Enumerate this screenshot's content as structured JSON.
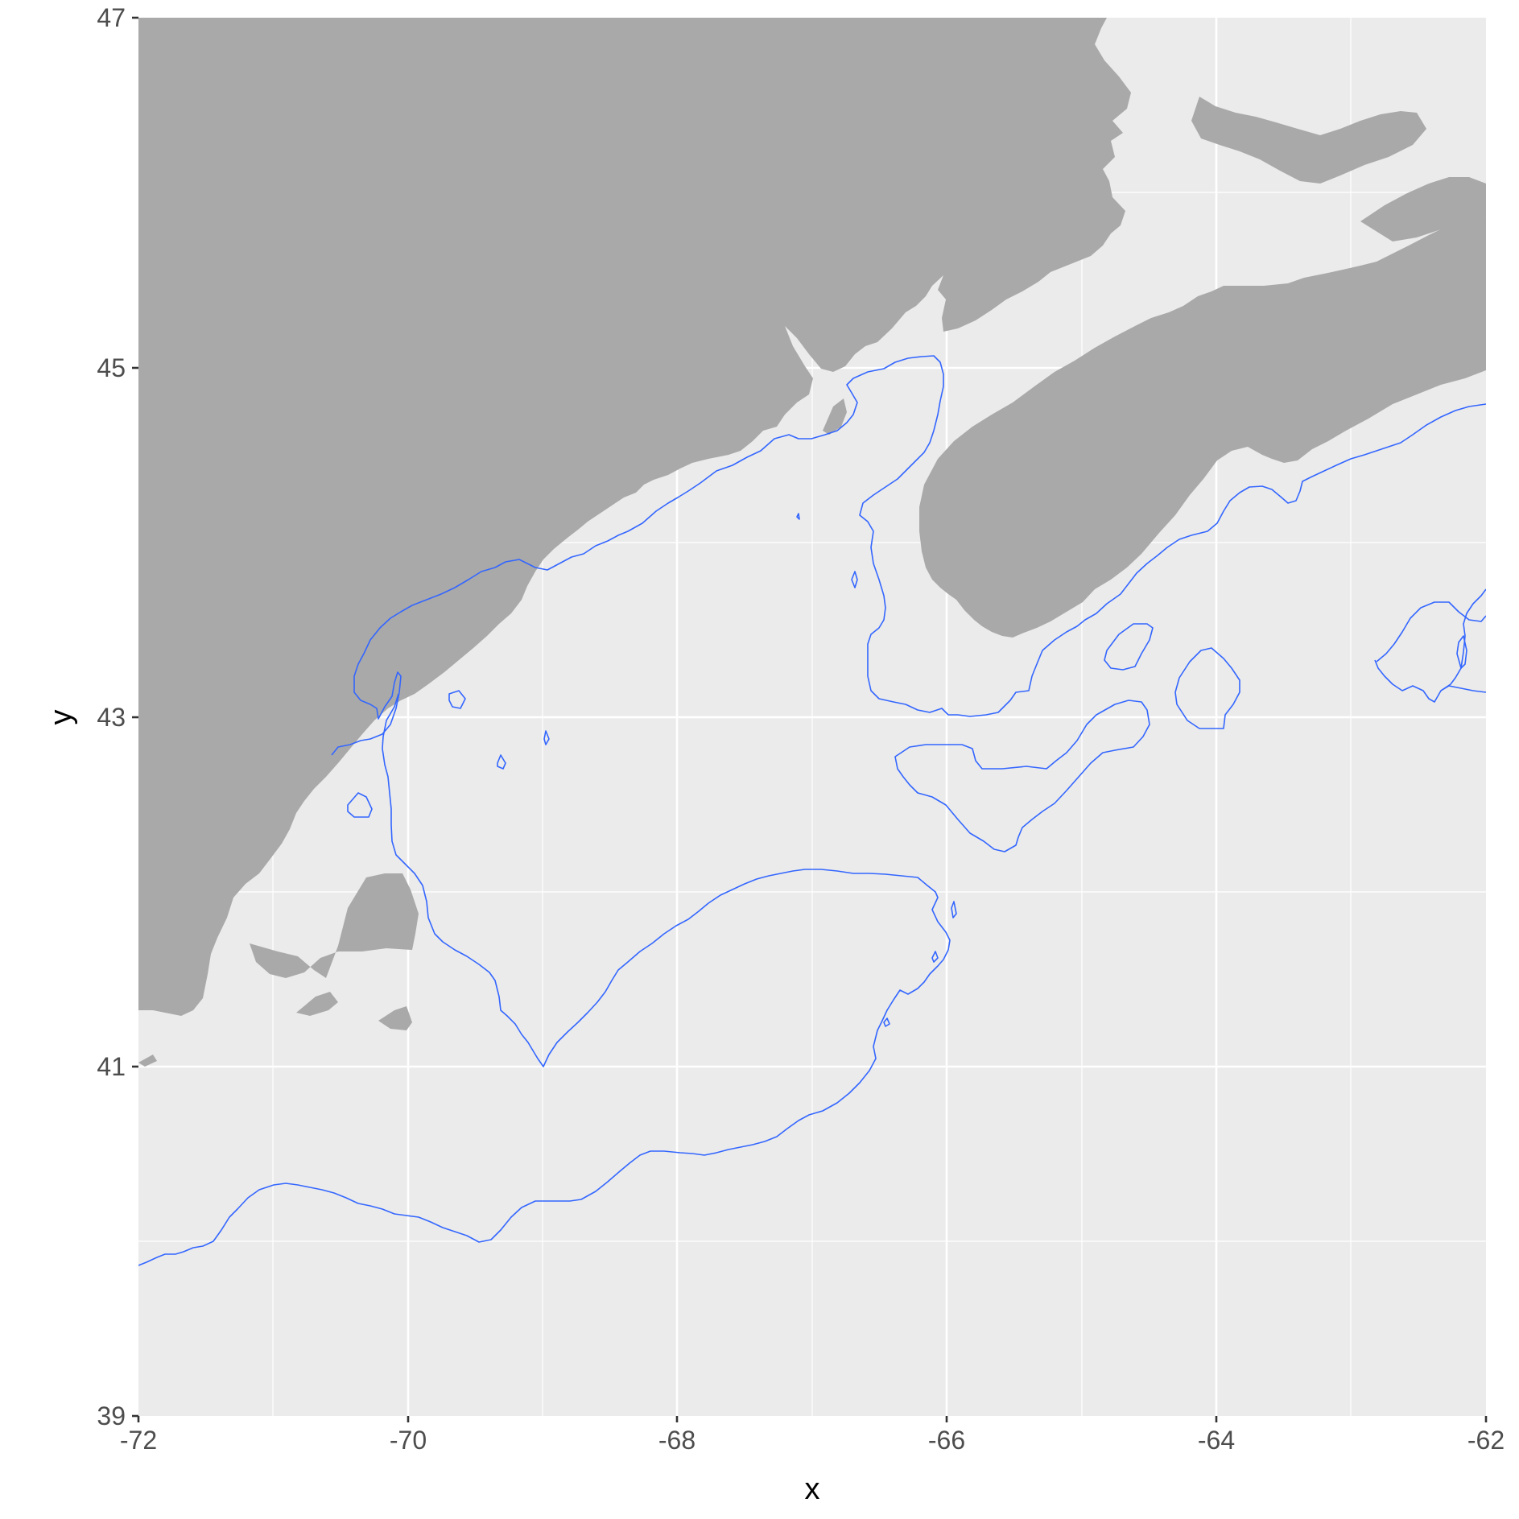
{
  "map": {
    "xlabel": "x",
    "ylabel": "y",
    "x_ticks": [
      "-72",
      "-70",
      "-68",
      "-66",
      "-64",
      "-62"
    ],
    "y_ticks": [
      "47",
      "45",
      "43",
      "41",
      "39"
    ],
    "xlim": [
      -72,
      -62
    ],
    "ylim": [
      39,
      47
    ],
    "panel_color": "#ebebeb",
    "land_color": "#a9a9a9",
    "contour_color": "#3366ff"
  }
}
